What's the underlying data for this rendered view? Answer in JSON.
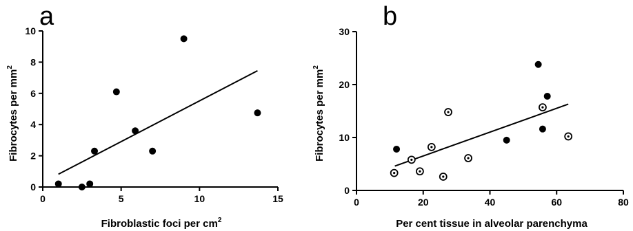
{
  "chart_data": [
    {
      "type": "scatter",
      "panel_label": "a",
      "xlabel": "Fibroblastic foci per cm",
      "xlabel_sup": "2",
      "ylabel": "Fibrocytes per mm",
      "ylabel_sup": "2",
      "xlim": [
        0,
        15
      ],
      "ylim": [
        0,
        10
      ],
      "x_ticks": [
        0,
        5,
        10,
        15
      ],
      "y_ticks": [
        0,
        2,
        4,
        6,
        8,
        10
      ],
      "grid": false,
      "series": [
        {
          "marker": "filled-circle",
          "color": "#000000",
          "points": [
            {
              "x": 1.0,
              "y": 0.2
            },
            {
              "x": 2.5,
              "y": 0.0
            },
            {
              "x": 3.0,
              "y": 0.2
            },
            {
              "x": 3.3,
              "y": 2.3
            },
            {
              "x": 4.7,
              "y": 6.1
            },
            {
              "x": 5.9,
              "y": 3.6
            },
            {
              "x": 7.0,
              "y": 2.3
            },
            {
              "x": 9.0,
              "y": 9.5
            },
            {
              "x": 13.7,
              "y": 4.75
            }
          ]
        }
      ],
      "fit_line": {
        "x": [
          1.0,
          13.7
        ],
        "y": [
          0.82,
          7.45
        ]
      }
    },
    {
      "type": "scatter",
      "panel_label": "b",
      "xlabel": "Per cent tissue in alveolar parenchyma",
      "xlabel_sup": "",
      "ylabel": "Fibrocytes per mm",
      "ylabel_sup": "2",
      "xlim": [
        0,
        80
      ],
      "ylim": [
        0,
        30
      ],
      "x_ticks": [
        0,
        20,
        40,
        60,
        80
      ],
      "y_ticks": [
        0,
        10,
        20,
        30
      ],
      "grid": false,
      "series": [
        {
          "marker": "filled-circle",
          "color": "#000000",
          "points": [
            {
              "x": 12.0,
              "y": 7.8
            },
            {
              "x": 45.0,
              "y": 9.5
            },
            {
              "x": 54.5,
              "y": 23.8
            },
            {
              "x": 55.8,
              "y": 11.6
            },
            {
              "x": 57.2,
              "y": 17.8
            }
          ]
        },
        {
          "marker": "dotted-open-circle",
          "color": "#000000",
          "points": [
            {
              "x": 11.3,
              "y": 3.3
            },
            {
              "x": 16.5,
              "y": 5.8
            },
            {
              "x": 19.0,
              "y": 3.6
            },
            {
              "x": 22.5,
              "y": 8.2
            },
            {
              "x": 26.0,
              "y": 2.6
            },
            {
              "x": 27.5,
              "y": 14.8
            },
            {
              "x": 33.5,
              "y": 6.1
            },
            {
              "x": 55.8,
              "y": 15.7
            },
            {
              "x": 63.5,
              "y": 10.2
            }
          ]
        }
      ],
      "fit_line": {
        "x": [
          11.5,
          63.5
        ],
        "y": [
          4.6,
          16.3
        ]
      }
    }
  ]
}
